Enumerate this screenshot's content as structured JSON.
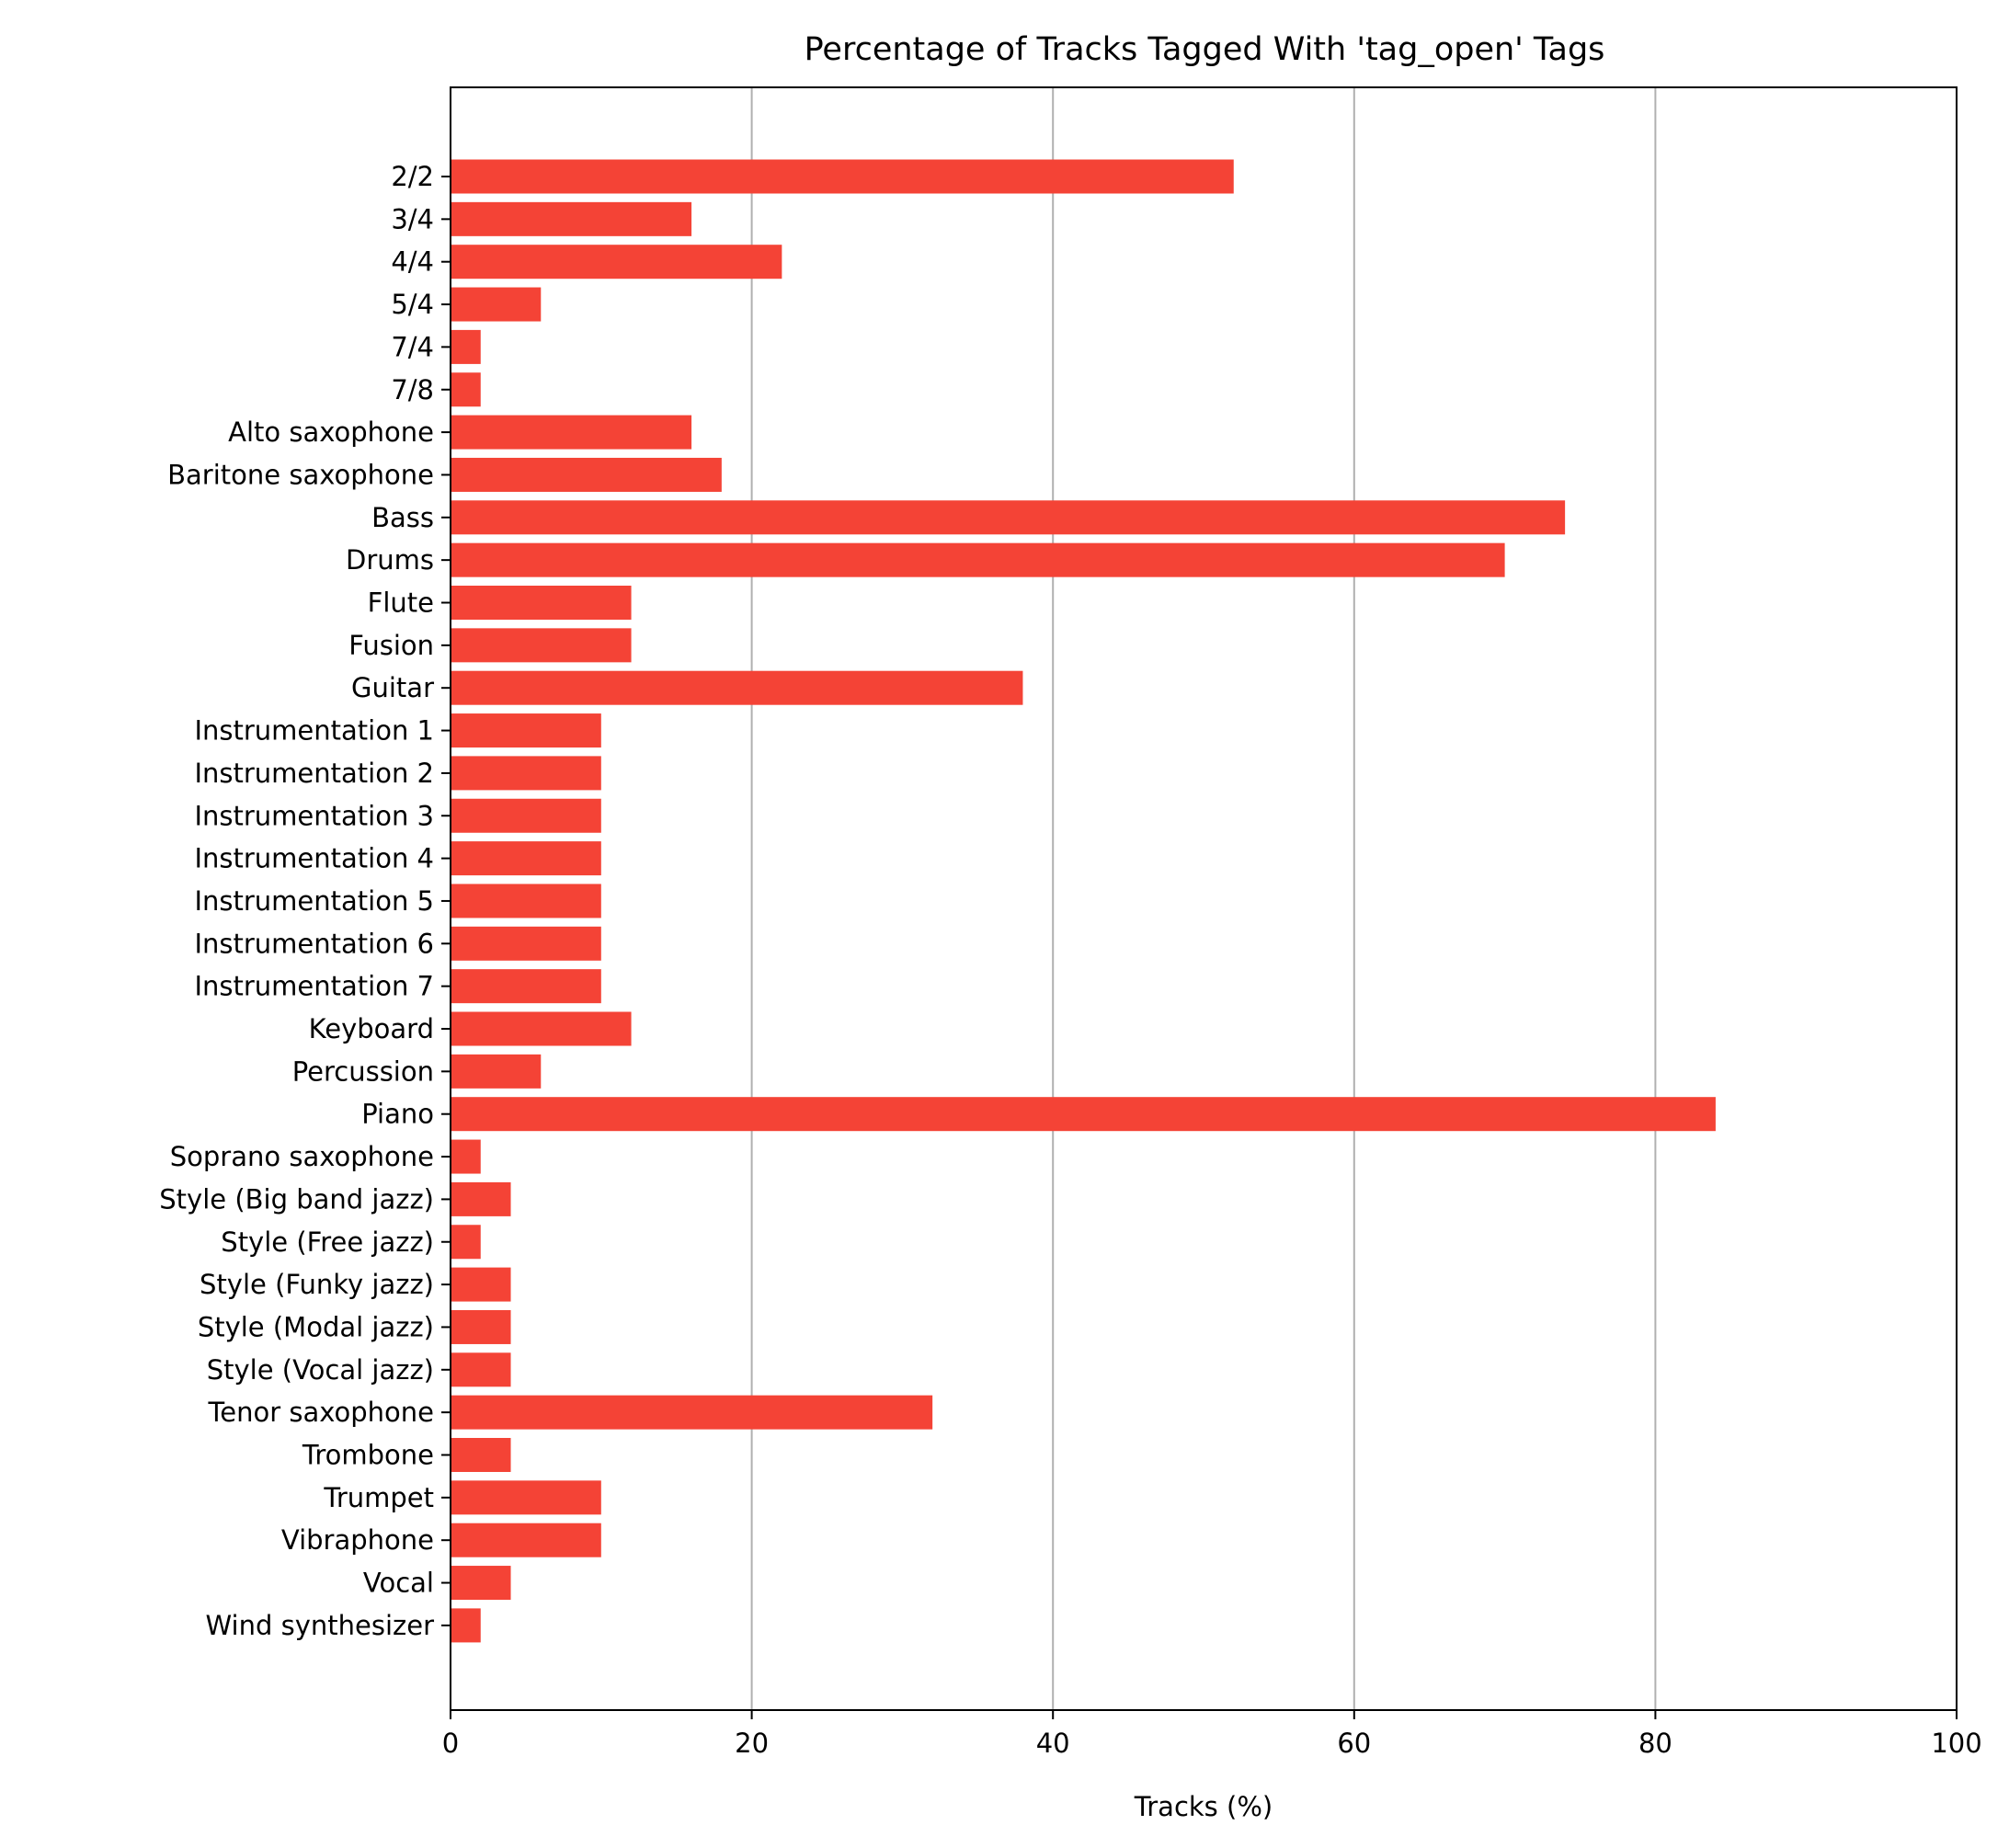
{
  "chart_data": {
    "type": "bar",
    "orientation": "horizontal",
    "title": "Percentage of Tracks Tagged With 'tag_open' Tags",
    "xlabel": "Tracks (%)",
    "ylabel": "",
    "xlim": [
      0,
      100
    ],
    "xticks": [
      0,
      20,
      40,
      60,
      80,
      100
    ],
    "grid": "vertical gridlines on x-axis ticks",
    "bar_color": "#f44336",
    "categories": [
      "2/2",
      "3/4",
      "4/4",
      "5/4",
      "7/4",
      "7/8",
      "Alto saxophone",
      "Baritone saxophone",
      "Bass",
      "Drums",
      "Flute",
      "Fusion",
      "Guitar",
      "Instrumentation 1",
      "Instrumentation 2",
      "Instrumentation 3",
      "Instrumentation 4",
      "Instrumentation 5",
      "Instrumentation 6",
      "Instrumentation 7",
      "Keyboard",
      "Percussion",
      "Piano",
      "Soprano saxophone",
      "Style (Big band jazz)",
      "Style (Free jazz)",
      "Style (Funky jazz)",
      "Style (Modal jazz)",
      "Style (Vocal jazz)",
      "Tenor saxophone",
      "Trombone",
      "Trumpet",
      "Vibraphone",
      "Vocal",
      "Wind synthesizer"
    ],
    "values": [
      52,
      16,
      22,
      6,
      2,
      2,
      16,
      18,
      74,
      70,
      12,
      12,
      38,
      10,
      10,
      10,
      10,
      10,
      10,
      10,
      12,
      6,
      84,
      2,
      4,
      2,
      4,
      4,
      4,
      32,
      4,
      10,
      10,
      4,
      2
    ]
  }
}
